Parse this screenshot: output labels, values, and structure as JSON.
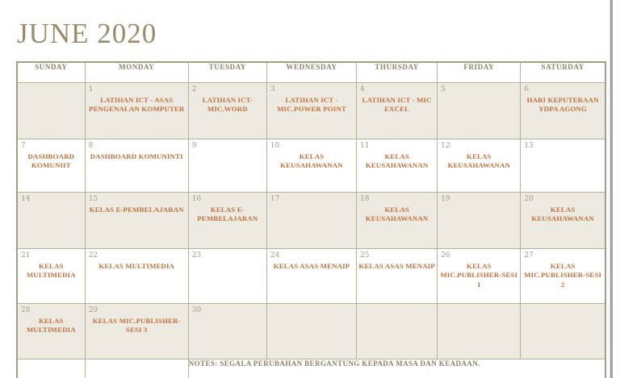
{
  "title": "JUNE 2020",
  "weekdays": [
    "SUNDAY",
    "MONDAY",
    "TUESDAY",
    "WEDNESDAY",
    "THURSDAY",
    "FRIDAY",
    "SATURDAY"
  ],
  "weeks": [
    [
      {
        "date": "",
        "event": ""
      },
      {
        "date": "1",
        "event": "LATIHAN ICT - ASAS PENGENALAN KOMPUTER"
      },
      {
        "date": "2",
        "event": "LATIHAN ICT- MIC.WORD"
      },
      {
        "date": "3",
        "event": "LATIHAN ICT - MIC.POWER POINT"
      },
      {
        "date": "4",
        "event": "LATIHAN ICT - MIC EXCEL"
      },
      {
        "date": "5",
        "event": ""
      },
      {
        "date": "6",
        "event": "HARI KEPUTERAAN YDPA AGONG"
      }
    ],
    [
      {
        "date": "7",
        "event": "DASHBOARD KOMUNIIT"
      },
      {
        "date": "8",
        "event": "DASHBOARD KOMUNINTI"
      },
      {
        "date": "9",
        "event": ""
      },
      {
        "date": "10",
        "event": "KELAS KEUSAHAWANAN"
      },
      {
        "date": "11",
        "event": "KELAS KEUSAHAWANAN"
      },
      {
        "date": "12",
        "event": "KELAS KEUSAHAWANAN"
      },
      {
        "date": "13",
        "event": ""
      }
    ],
    [
      {
        "date": "14",
        "event": ""
      },
      {
        "date": "15",
        "event": "KELAS E-PEMBELAJARAN"
      },
      {
        "date": "16",
        "event": "KELAS E-PEMBELAJARAN"
      },
      {
        "date": "17",
        "event": ""
      },
      {
        "date": "18",
        "event": "KELAS KEUSAHAWANAN"
      },
      {
        "date": "19",
        "event": ""
      },
      {
        "date": "20",
        "event": "KELAS KEUSAHAWANAN"
      }
    ],
    [
      {
        "date": "21",
        "event": "KELAS MULTIMEDIA"
      },
      {
        "date": "22",
        "event": "KELAS MULTIMEDIA"
      },
      {
        "date": "23",
        "event": ""
      },
      {
        "date": "24",
        "event": "KELAS ASAS MENAIP"
      },
      {
        "date": "25",
        "event": "KELAS ASAS MENAIP"
      },
      {
        "date": "26",
        "event": "KELAS MIC.PUBLISHER-SESI 1"
      },
      {
        "date": "27",
        "event": "KELAS MIC.PUBLISHER-SESI 2"
      }
    ],
    [
      {
        "date": "28",
        "event": "KELAS MULTIMEDIA"
      },
      {
        "date": "29",
        "event": "KELAS MIC.PUBLISHER-SESI 3"
      },
      {
        "date": "30",
        "event": ""
      },
      {
        "date": "",
        "event": ""
      },
      {
        "date": "",
        "event": ""
      },
      {
        "date": "",
        "event": ""
      },
      {
        "date": "",
        "event": ""
      }
    ]
  ],
  "notes": "NOTES: SEGALA PERUBAHAN BERGANTUNG KEPADA MASA DAN KEADAAN.",
  "colors": {
    "title-text": "#9b8c69",
    "header-text": "#8b8268",
    "date-text": "#a29b89",
    "event-text": "#c0703a",
    "notes-text": "#8b8268",
    "row-beige": "#edeae1",
    "border-outer": "#a79d82",
    "border-inner": "#b9b09a",
    "edge-bar": "#9ea5ad"
  }
}
